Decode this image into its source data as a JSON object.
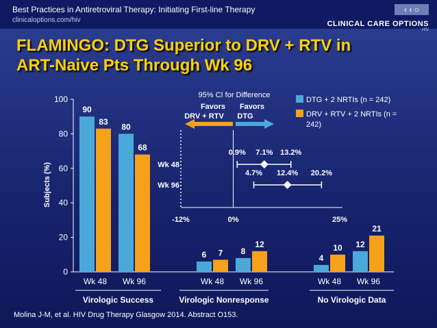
{
  "header": {
    "title": "Best Practices in Antiretroviral Therapy: Initiating First-line Therapy",
    "url": "clinicaloptions.com/hiv",
    "logo_text": "CLINICAL CARE OPTIONS",
    "logo_sub": "HIV"
  },
  "slide": {
    "title_line1": "FLAMINGO: DTG Superior to DRV + RTV in",
    "title_line2": "ART-Naive Pts Through Wk 96",
    "citation": "Molina J-M, et al. HIV Drug Therapy Glasgow 2014. Abstract O153."
  },
  "colors": {
    "dtg": "#4aa9d9",
    "drv": "#f7a11a",
    "title": "#ffd200"
  },
  "chart_data": {
    "type": "bar",
    "ylabel": "Subjects (%)",
    "ylim": [
      0,
      100
    ],
    "yticks": [
      "0",
      "20",
      "40",
      "60",
      "80",
      "100"
    ],
    "ytick_values": [
      0,
      20,
      40,
      60,
      80,
      100
    ],
    "groups": [
      {
        "label": "Virologic Success",
        "categories": [
          "Wk 48",
          "Wk 96"
        ]
      },
      {
        "label": "Virologic Nonresponse",
        "categories": [
          "Wk 48",
          "Wk 96"
        ]
      },
      {
        "label": "No Virologic Data",
        "categories": [
          "Wk 48",
          "Wk 96"
        ]
      }
    ],
    "series": [
      {
        "name": "DTG + 2 NRTIs (n = 242)",
        "values": [
          90,
          80,
          6,
          8,
          4,
          12
        ],
        "labels": [
          "90",
          "80",
          "6",
          "8",
          "4",
          "12"
        ]
      },
      {
        "name": "DRV + RTV + 2 NRTIs (n = 242)",
        "values": [
          83,
          68,
          7,
          12,
          10,
          21
        ],
        "labels": [
          "83",
          "68",
          "7",
          "12",
          "10",
          "21"
        ]
      }
    ],
    "legend": {
      "line1": "DTG + 2 NRTIs (n = 242)",
      "line2a": "DRV + RTV + 2 NRTIs (n =",
      "line2b": "242)"
    },
    "inset": {
      "title": "95% CI for Difference",
      "favors": "Favors",
      "left_label": "DRV + RTV",
      "right_label": "DTG",
      "axis_labels": [
        "-12%",
        "0%",
        "25%"
      ],
      "axis_values": [
        -12,
        0,
        25
      ],
      "rows": [
        {
          "label": "Wk 48",
          "low": 0.9,
          "point": 7.1,
          "high": 13.2,
          "low_text": "0.9%",
          "point_text": "7.1%",
          "high_text": "13.2%"
        },
        {
          "label": "Wk 96",
          "low": 4.7,
          "point": 12.4,
          "high": 20.2,
          "low_text": "4.7%",
          "point_text": "12.4%",
          "high_text": "20.2%"
        }
      ]
    }
  }
}
